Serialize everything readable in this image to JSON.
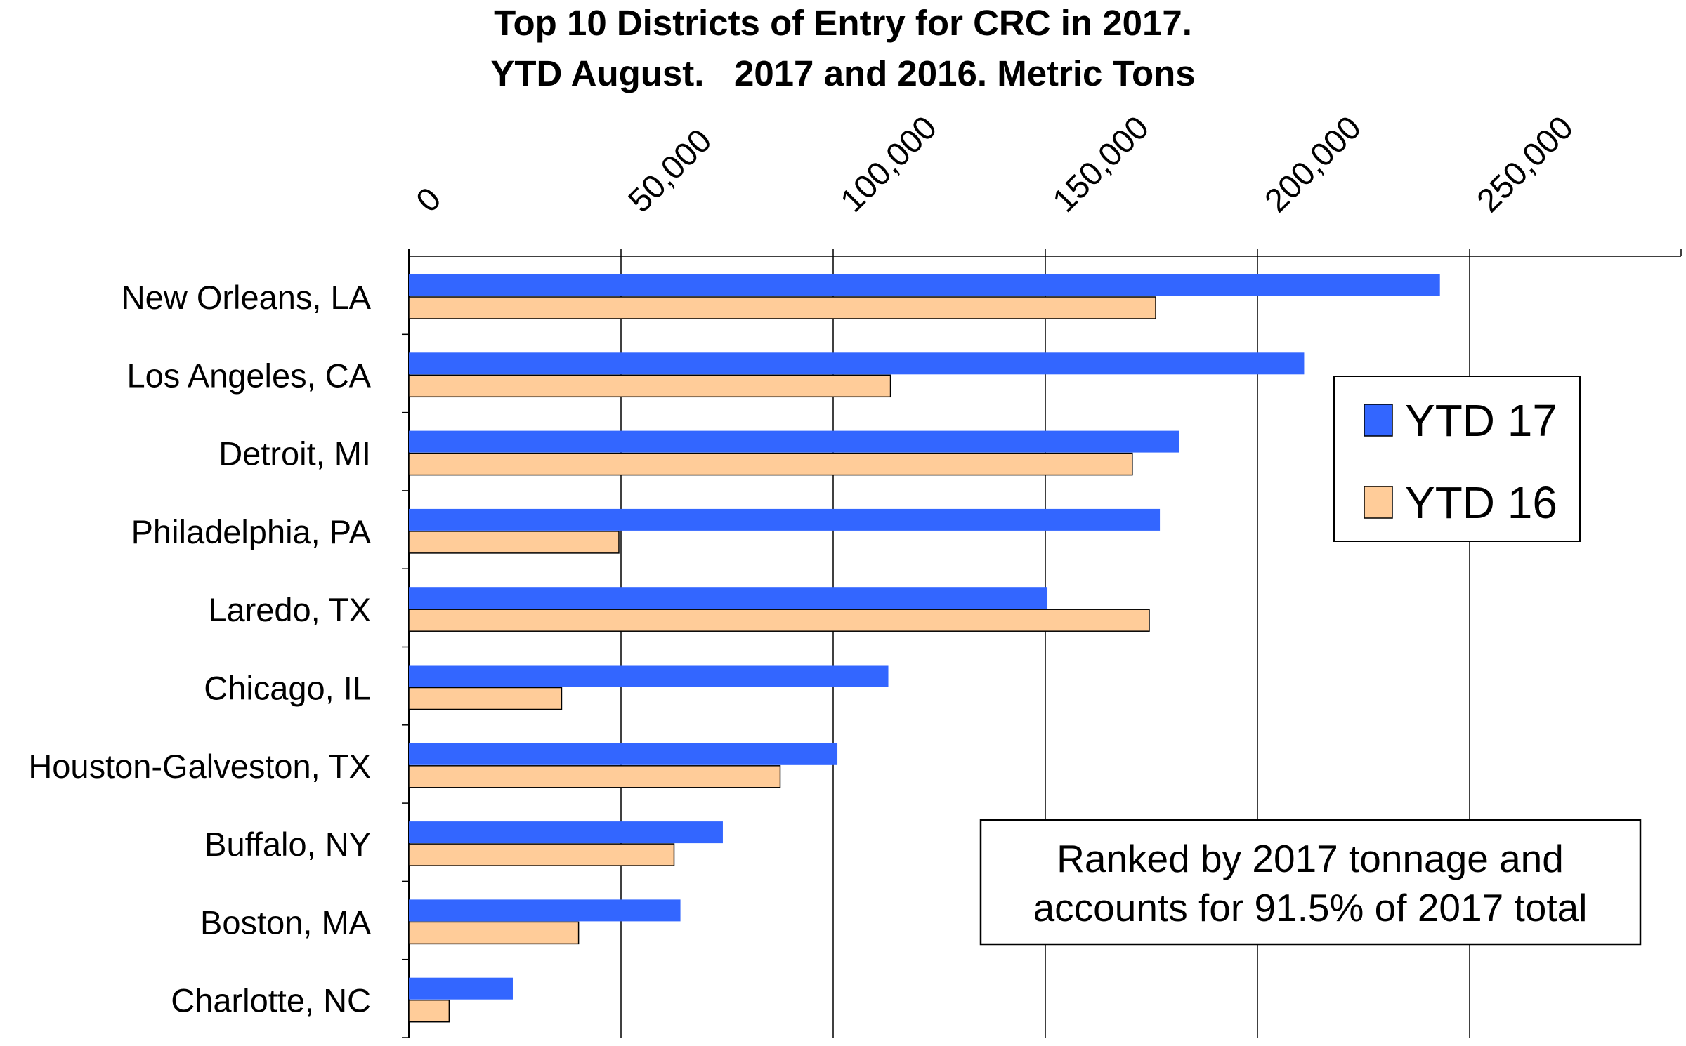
{
  "chart_data": {
    "type": "bar",
    "orientation": "horizontal",
    "title": "Top 10 Districts of Entry for CRC in 2017.",
    "subtitle": "YTD August.   2017 and 2016. Metric Tons",
    "xlabel": "",
    "ylabel": "",
    "xlim": [
      0,
      300000
    ],
    "x_ticks": [
      0,
      50000,
      100000,
      150000,
      200000,
      250000
    ],
    "x_tick_labels": [
      "0",
      "50,000",
      "100,000",
      "150,000",
      "200,000",
      "250,000"
    ],
    "x_tick_position": "top",
    "grid": true,
    "legend_position": "right",
    "categories": [
      "New Orleans, LA",
      "Los Angeles, CA",
      "Detroit, MI",
      "Philadelphia, PA",
      "Laredo, TX",
      "Chicago, IL",
      "Houston-Galveston, TX",
      "Buffalo, NY",
      "Boston, MA",
      "Charlotte, NC"
    ],
    "series": [
      {
        "name": "YTD 17",
        "color": "#3366ff",
        "values": [
          243000,
          211000,
          181500,
          177000,
          150500,
          113000,
          101000,
          74000,
          64000,
          24500
        ]
      },
      {
        "name": "YTD 16",
        "color": "#ffcc99",
        "values": [
          176000,
          113500,
          170500,
          49500,
          174500,
          36000,
          87500,
          62500,
          40000,
          9500
        ]
      }
    ],
    "annotation": {
      "line1": "Ranked by 2017 tonnage and",
      "line2": "accounts for 91.5% of 2017 total"
    }
  }
}
